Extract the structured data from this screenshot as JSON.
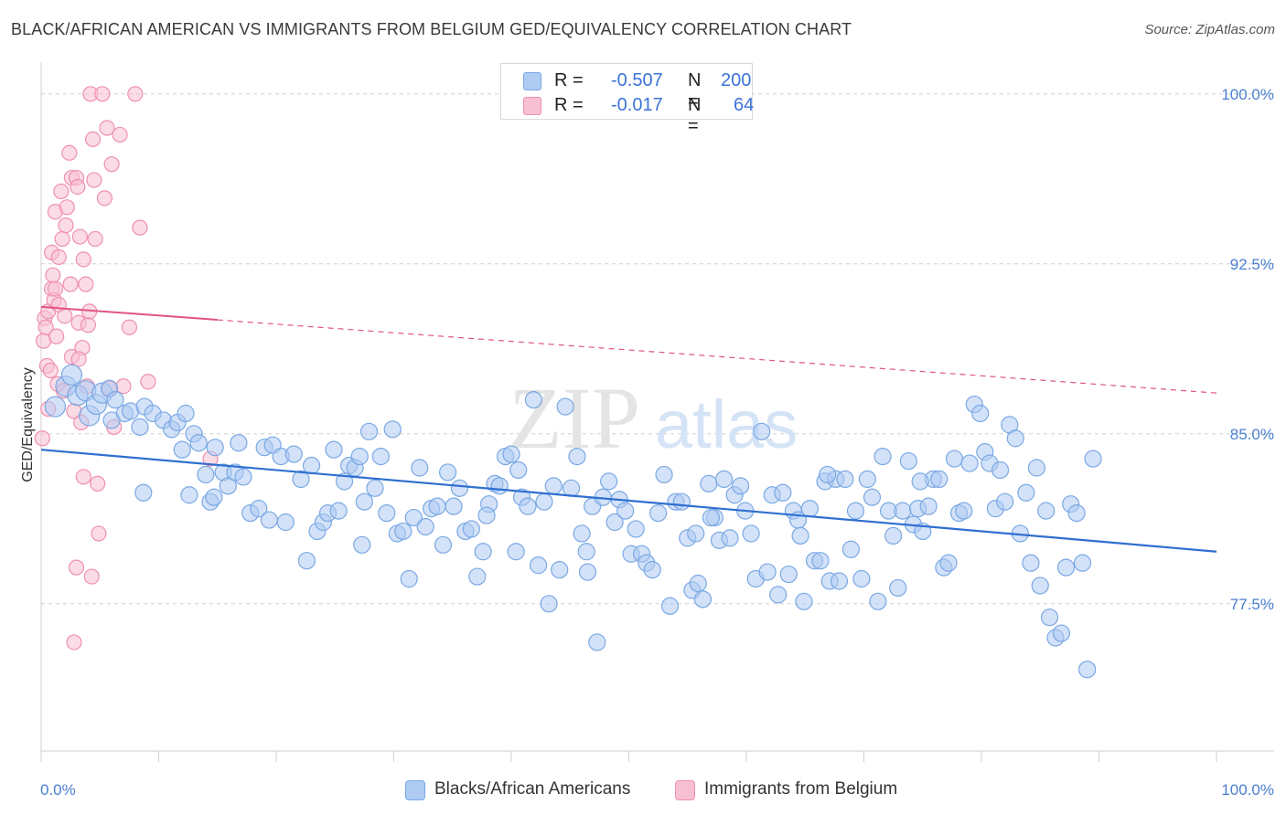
{
  "title": "BLACK/AFRICAN AMERICAN VS IMMIGRANTS FROM BELGIUM GED/EQUIVALENCY CORRELATION CHART",
  "source": "Source: ZipAtlas.com",
  "watermark": {
    "zip": "ZIP",
    "atlas": "atlas"
  },
  "legend": {
    "r_label": "R =",
    "n_label": "N =",
    "series": [
      {
        "name": "Blacks/African Americans",
        "r": "-0.507",
        "n": "200"
      },
      {
        "name": "Immigrants from Belgium",
        "r": "-0.017",
        "n": "64"
      }
    ]
  },
  "colors": {
    "blue_fill": "#aecbf2",
    "blue_stroke": "#7aa8e4",
    "blue_line": "#2f6fd0",
    "pink_fill": "#f7c0d2",
    "pink_stroke": "#ef8fb0",
    "pink_line": "#e0557f",
    "tick_text": "#4a7fd0",
    "grid": "#d0d0d0"
  },
  "chart_data": {
    "type": "scatter",
    "title": "BLACK/AFRICAN AMERICAN VS IMMIGRANTS FROM BELGIUM GED/EQUIVALENCY CORRELATION CHART",
    "xlabel": "",
    "ylabel": "GED/Equivalency",
    "xlim": [
      0,
      100
    ],
    "ylim": [
      71.0,
      101.0
    ],
    "x_tick_labels": [
      "0.0%",
      "100.0%"
    ],
    "y_ticks": [
      77.5,
      85.0,
      92.5,
      100.0
    ],
    "y_tick_labels": [
      "77.5%",
      "85.0%",
      "92.5%",
      "100.0%"
    ],
    "grid": "horizontal dashed",
    "legend_position": "top-center",
    "series": [
      {
        "name": "Blacks/African Americans",
        "color": "#aecbf2",
        "trendline": {
          "x": [
            0,
            100
          ],
          "y": [
            84.3,
            79.8
          ],
          "style": "solid"
        },
        "points": [
          [
            1.2,
            86.2
          ],
          [
            2.1,
            87.1
          ],
          [
            2.6,
            87.6
          ],
          [
            3.1,
            86.7
          ],
          [
            3.8,
            86.9
          ],
          [
            4.1,
            85.8
          ],
          [
            4.7,
            86.3
          ],
          [
            5.2,
            86.8
          ],
          [
            5.8,
            87.0
          ],
          [
            6.3,
            86.5
          ],
          [
            6.0,
            85.6
          ],
          [
            7.1,
            85.9
          ],
          [
            7.6,
            86.0
          ],
          [
            8.4,
            85.3
          ],
          [
            8.8,
            86.2
          ],
          [
            9.5,
            85.9
          ],
          [
            10.4,
            85.6
          ],
          [
            11.1,
            85.2
          ],
          [
            11.6,
            85.5
          ],
          [
            12.3,
            85.9
          ],
          [
            8.7,
            82.4
          ],
          [
            12.0,
            84.3
          ],
          [
            12.6,
            82.3
          ],
          [
            13.0,
            85.0
          ],
          [
            13.4,
            84.6
          ],
          [
            14.0,
            83.2
          ],
          [
            14.4,
            82.0
          ],
          [
            14.8,
            84.4
          ],
          [
            15.5,
            83.3
          ],
          [
            15.9,
            82.7
          ],
          [
            16.5,
            83.3
          ],
          [
            16.8,
            84.6
          ],
          [
            17.2,
            83.1
          ],
          [
            17.8,
            81.5
          ],
          [
            18.5,
            81.7
          ],
          [
            19.0,
            84.4
          ],
          [
            19.4,
            81.2
          ],
          [
            19.7,
            84.5
          ],
          [
            20.4,
            84.0
          ],
          [
            20.8,
            81.1
          ],
          [
            21.5,
            84.1
          ],
          [
            22.1,
            83.0
          ],
          [
            22.6,
            79.4
          ],
          [
            23.0,
            83.6
          ],
          [
            23.5,
            80.7
          ],
          [
            24.0,
            81.1
          ],
          [
            24.4,
            81.5
          ],
          [
            24.9,
            84.3
          ],
          [
            25.3,
            81.6
          ],
          [
            25.8,
            82.9
          ],
          [
            26.2,
            83.6
          ],
          [
            26.7,
            83.5
          ],
          [
            27.1,
            84.0
          ],
          [
            27.5,
            82.0
          ],
          [
            27.9,
            85.1
          ],
          [
            28.4,
            82.6
          ],
          [
            28.9,
            84.0
          ],
          [
            29.4,
            81.5
          ],
          [
            29.9,
            85.2
          ],
          [
            30.3,
            80.6
          ],
          [
            30.8,
            80.7
          ],
          [
            31.3,
            78.6
          ],
          [
            31.7,
            81.3
          ],
          [
            32.2,
            83.5
          ],
          [
            32.7,
            80.9
          ],
          [
            33.2,
            81.7
          ],
          [
            33.7,
            81.8
          ],
          [
            34.2,
            80.1
          ],
          [
            34.6,
            83.3
          ],
          [
            35.1,
            81.8
          ],
          [
            35.6,
            82.6
          ],
          [
            36.1,
            80.7
          ],
          [
            36.6,
            80.8
          ],
          [
            37.1,
            78.7
          ],
          [
            37.6,
            79.8
          ],
          [
            38.1,
            81.9
          ],
          [
            38.6,
            82.8
          ],
          [
            39.0,
            82.7
          ],
          [
            39.5,
            84.0
          ],
          [
            40.0,
            84.1
          ],
          [
            40.4,
            79.8
          ],
          [
            40.9,
            82.2
          ],
          [
            41.4,
            81.8
          ],
          [
            41.9,
            86.5
          ],
          [
            42.3,
            79.2
          ],
          [
            42.8,
            82.0
          ],
          [
            43.2,
            77.5
          ],
          [
            43.6,
            82.7
          ],
          [
            44.1,
            79.0
          ],
          [
            44.6,
            86.2
          ],
          [
            45.1,
            82.6
          ],
          [
            45.6,
            84.0
          ],
          [
            46.0,
            80.6
          ],
          [
            46.4,
            79.8
          ],
          [
            46.9,
            81.8
          ],
          [
            47.3,
            75.8
          ],
          [
            47.8,
            82.2
          ],
          [
            48.3,
            82.9
          ],
          [
            48.8,
            81.1
          ],
          [
            49.2,
            82.1
          ],
          [
            49.7,
            81.6
          ],
          [
            50.2,
            79.7
          ],
          [
            50.6,
            80.8
          ],
          [
            51.1,
            79.7
          ],
          [
            51.5,
            79.3
          ],
          [
            52.0,
            79.0
          ],
          [
            52.5,
            81.5
          ],
          [
            53.0,
            83.2
          ],
          [
            53.5,
            77.4
          ],
          [
            54.0,
            82.0
          ],
          [
            54.5,
            82.0
          ],
          [
            55.0,
            80.4
          ],
          [
            55.4,
            78.1
          ],
          [
            55.9,
            78.4
          ],
          [
            56.3,
            77.7
          ],
          [
            56.8,
            82.8
          ],
          [
            57.3,
            81.3
          ],
          [
            57.7,
            80.3
          ],
          [
            58.1,
            83.0
          ],
          [
            58.6,
            80.4
          ],
          [
            59.0,
            82.3
          ],
          [
            59.5,
            82.7
          ],
          [
            59.9,
            81.6
          ],
          [
            60.4,
            80.6
          ],
          [
            60.8,
            78.6
          ],
          [
            61.3,
            85.1
          ],
          [
            61.8,
            78.9
          ],
          [
            62.2,
            82.3
          ],
          [
            62.7,
            77.9
          ],
          [
            63.1,
            82.4
          ],
          [
            63.6,
            78.8
          ],
          [
            64.0,
            81.6
          ],
          [
            64.4,
            81.2
          ],
          [
            64.9,
            77.6
          ],
          [
            65.4,
            81.7
          ],
          [
            65.8,
            79.4
          ],
          [
            66.3,
            79.4
          ],
          [
            66.7,
            82.9
          ],
          [
            67.1,
            78.5
          ],
          [
            67.6,
            83.0
          ],
          [
            67.9,
            78.5
          ],
          [
            68.4,
            83.0
          ],
          [
            68.9,
            79.9
          ],
          [
            69.3,
            81.6
          ],
          [
            69.8,
            78.6
          ],
          [
            70.3,
            83.0
          ],
          [
            70.7,
            82.2
          ],
          [
            71.2,
            77.6
          ],
          [
            71.6,
            84.0
          ],
          [
            72.1,
            81.6
          ],
          [
            72.5,
            80.5
          ],
          [
            72.9,
            78.2
          ],
          [
            73.3,
            81.6
          ],
          [
            73.8,
            83.8
          ],
          [
            74.2,
            81.0
          ],
          [
            74.6,
            81.7
          ],
          [
            75.0,
            80.7
          ],
          [
            75.5,
            81.8
          ],
          [
            75.9,
            83.0
          ],
          [
            76.4,
            83.0
          ],
          [
            76.8,
            79.1
          ],
          [
            77.2,
            79.3
          ],
          [
            77.7,
            83.9
          ],
          [
            78.1,
            81.5
          ],
          [
            78.5,
            81.6
          ],
          [
            79.0,
            83.7
          ],
          [
            79.4,
            86.3
          ],
          [
            79.9,
            85.9
          ],
          [
            80.3,
            84.2
          ],
          [
            80.7,
            83.7
          ],
          [
            81.2,
            81.7
          ],
          [
            81.6,
            83.4
          ],
          [
            82.0,
            82.0
          ],
          [
            82.4,
            85.4
          ],
          [
            82.9,
            84.8
          ],
          [
            83.3,
            80.6
          ],
          [
            83.8,
            82.4
          ],
          [
            84.2,
            79.3
          ],
          [
            84.7,
            83.5
          ],
          [
            85.0,
            78.3
          ],
          [
            85.5,
            81.6
          ],
          [
            85.8,
            76.9
          ],
          [
            86.3,
            76.0
          ],
          [
            86.8,
            76.2
          ],
          [
            87.2,
            79.1
          ],
          [
            87.6,
            81.9
          ],
          [
            88.1,
            81.5
          ],
          [
            88.6,
            79.3
          ],
          [
            89.0,
            74.6
          ],
          [
            89.5,
            83.9
          ],
          [
            37.9,
            81.4
          ],
          [
            57.0,
            81.3
          ],
          [
            74.8,
            82.9
          ],
          [
            66.9,
            83.2
          ],
          [
            40.6,
            83.4
          ],
          [
            14.7,
            82.2
          ],
          [
            46.5,
            78.9
          ],
          [
            55.7,
            80.6
          ],
          [
            27.3,
            80.1
          ],
          [
            64.6,
            80.5
          ]
        ]
      },
      {
        "name": "Immigrants from Belgium",
        "color": "#f7c0d2",
        "trendline": {
          "x": [
            0,
            100
          ],
          "y": [
            90.6,
            86.8
          ],
          "style": "solid to x=15, dashed beyond"
        },
        "points": [
          [
            0.1,
            84.8
          ],
          [
            0.2,
            89.1
          ],
          [
            0.3,
            90.1
          ],
          [
            0.4,
            89.7
          ],
          [
            0.5,
            88.0
          ],
          [
            0.6,
            86.1
          ],
          [
            0.6,
            90.4
          ],
          [
            0.8,
            87.8
          ],
          [
            0.9,
            91.4
          ],
          [
            0.9,
            93.0
          ],
          [
            1.0,
            92.0
          ],
          [
            1.1,
            90.9
          ],
          [
            1.2,
            94.8
          ],
          [
            1.2,
            91.4
          ],
          [
            1.3,
            89.3
          ],
          [
            1.4,
            87.2
          ],
          [
            1.5,
            90.7
          ],
          [
            1.5,
            92.8
          ],
          [
            1.7,
            95.7
          ],
          [
            1.8,
            93.6
          ],
          [
            1.9,
            86.9
          ],
          [
            2.0,
            90.2
          ],
          [
            2.1,
            94.2
          ],
          [
            2.2,
            95.0
          ],
          [
            2.4,
            97.4
          ],
          [
            2.5,
            91.6
          ],
          [
            2.6,
            88.4
          ],
          [
            2.6,
            96.3
          ],
          [
            2.8,
            86.0
          ],
          [
            3.0,
            96.3
          ],
          [
            3.1,
            95.9
          ],
          [
            3.2,
            89.9
          ],
          [
            3.3,
            93.7
          ],
          [
            3.4,
            85.5
          ],
          [
            3.5,
            88.8
          ],
          [
            3.6,
            92.7
          ],
          [
            3.8,
            91.6
          ],
          [
            3.9,
            87.1
          ],
          [
            4.0,
            89.8
          ],
          [
            4.1,
            90.4
          ],
          [
            4.2,
            100.0
          ],
          [
            4.4,
            98.0
          ],
          [
            4.5,
            96.2
          ],
          [
            4.6,
            93.6
          ],
          [
            4.8,
            82.8
          ],
          [
            4.9,
            80.6
          ],
          [
            5.2,
            100.0
          ],
          [
            5.4,
            95.4
          ],
          [
            5.6,
            98.5
          ],
          [
            5.8,
            87.0
          ],
          [
            6.0,
            96.9
          ],
          [
            6.2,
            85.3
          ],
          [
            6.7,
            98.2
          ],
          [
            7.0,
            87.1
          ],
          [
            7.5,
            89.7
          ],
          [
            8.0,
            100.0
          ],
          [
            8.4,
            94.1
          ],
          [
            9.1,
            87.3
          ],
          [
            14.4,
            83.9
          ],
          [
            2.8,
            75.8
          ],
          [
            3.0,
            79.1
          ],
          [
            3.2,
            88.3
          ],
          [
            3.6,
            83.1
          ],
          [
            4.3,
            78.7
          ]
        ]
      }
    ]
  }
}
